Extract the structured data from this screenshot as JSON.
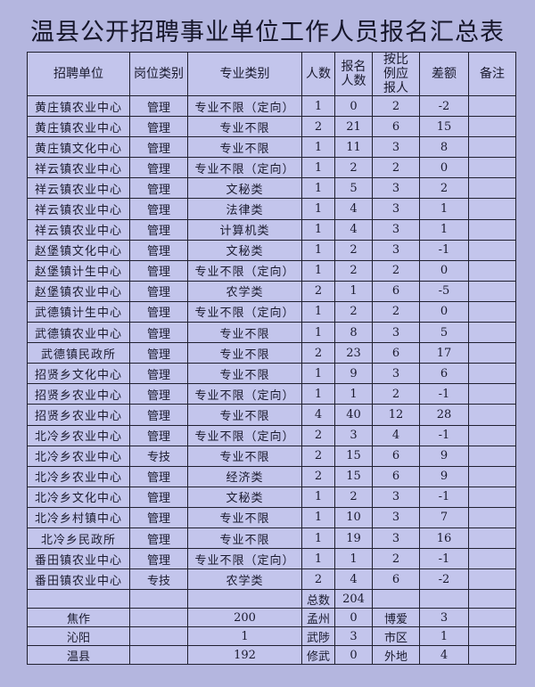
{
  "title": "温县公开招聘事业单位工作人员报名汇总表",
  "headers": [
    "招聘单位",
    "岗位类别",
    "专业类别",
    "人数",
    "报名人数",
    "按比例应报人",
    "差额",
    "备注"
  ],
  "rows": [
    [
      "黄庄镇农业中心",
      "管理",
      "专业不限（定向）",
      "1",
      "0",
      "2",
      "-2",
      ""
    ],
    [
      "黄庄镇农业中心",
      "管理",
      "专业不限",
      "2",
      "21",
      "6",
      "15",
      ""
    ],
    [
      "黄庄镇文化中心",
      "管理",
      "专业不限",
      "1",
      "11",
      "3",
      "8",
      ""
    ],
    [
      "祥云镇农业中心",
      "管理",
      "专业不限（定向）",
      "1",
      "2",
      "2",
      "0",
      ""
    ],
    [
      "祥云镇农业中心",
      "管理",
      "文秘类",
      "1",
      "5",
      "3",
      "2",
      ""
    ],
    [
      "祥云镇农业中心",
      "管理",
      "法律类",
      "1",
      "4",
      "3",
      "1",
      ""
    ],
    [
      "祥云镇农业中心",
      "管理",
      "计算机类",
      "1",
      "4",
      "3",
      "1",
      ""
    ],
    [
      "赵堡镇文化中心",
      "管理",
      "文秘类",
      "1",
      "2",
      "3",
      "-1",
      ""
    ],
    [
      "赵堡镇计生中心",
      "管理",
      "专业不限（定向）",
      "1",
      "2",
      "2",
      "0",
      ""
    ],
    [
      "赵堡镇农业中心",
      "管理",
      "农学类",
      "2",
      "1",
      "6",
      "-5",
      ""
    ],
    [
      "武德镇计生中心",
      "管理",
      "专业不限（定向）",
      "1",
      "2",
      "2",
      "0",
      ""
    ],
    [
      "武德镇农业中心",
      "管理",
      "专业不限",
      "1",
      "8",
      "3",
      "5",
      ""
    ],
    [
      "武德镇民政所",
      "管理",
      "专业不限",
      "2",
      "23",
      "6",
      "17",
      ""
    ],
    [
      "招贤乡文化中心",
      "管理",
      "专业不限",
      "1",
      "9",
      "3",
      "6",
      ""
    ],
    [
      "招贤乡农业中心",
      "管理",
      "专业不限（定向）",
      "1",
      "1",
      "2",
      "-1",
      ""
    ],
    [
      "招贤乡农业中心",
      "管理",
      "专业不限",
      "4",
      "40",
      "12",
      "28",
      ""
    ],
    [
      "北冷乡农业中心",
      "管理",
      "专业不限（定向）",
      "2",
      "3",
      "4",
      "-1",
      ""
    ],
    [
      "北冷乡农业中心",
      "专技",
      "专业不限",
      "2",
      "15",
      "6",
      "9",
      ""
    ],
    [
      "北冷乡农业中心",
      "管理",
      "经济类",
      "2",
      "15",
      "6",
      "9",
      ""
    ],
    [
      "北冷乡文化中心",
      "管理",
      "文秘类",
      "1",
      "2",
      "3",
      "-1",
      ""
    ],
    [
      "北冷乡村镇中心",
      "管理",
      "专业不限",
      "1",
      "10",
      "3",
      "7",
      ""
    ],
    [
      "北冷乡民政所",
      "管理",
      "专业不限",
      "1",
      "19",
      "3",
      "16",
      ""
    ],
    [
      "番田镇农业中心",
      "管理",
      "专业不限（定向）",
      "1",
      "1",
      "2",
      "-1",
      ""
    ],
    [
      "番田镇农业中心",
      "专技",
      "农学类",
      "2",
      "4",
      "6",
      "-2",
      ""
    ]
  ],
  "total": {
    "label": "总数",
    "value": "204"
  },
  "summary": [
    [
      "焦作",
      "200",
      "孟州",
      "0",
      "博爱",
      "3"
    ],
    [
      "沁阳",
      "1",
      "武陟",
      "3",
      "市区",
      "1"
    ],
    [
      "温县",
      "192",
      "修武",
      "0",
      "外地",
      "4"
    ]
  ]
}
